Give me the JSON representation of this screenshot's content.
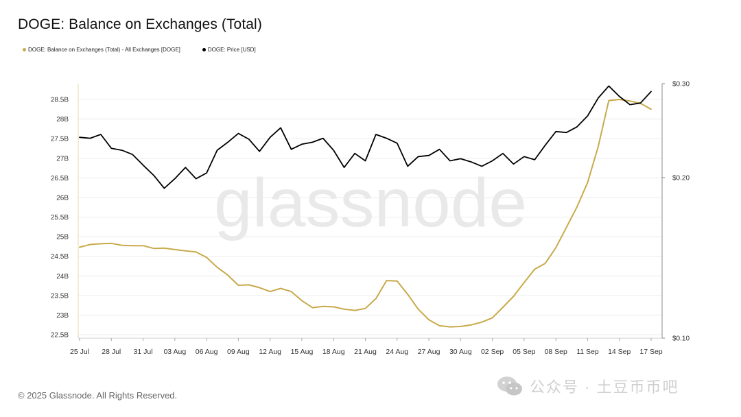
{
  "title": "DOGE: Balance on Exchanges (Total)",
  "legend": [
    {
      "label": "DOGE: Balance on Exchanges (Total) - All Exchanges [DOGE]",
      "color": "#c8a94a"
    },
    {
      "label": "DOGE: Price [USD]",
      "color": "#000000"
    }
  ],
  "footer": "© 2025 Glassnode. All Rights Reserved.",
  "watermark": "glassnode",
  "wechat_text": "公众号 · 土豆币币吧",
  "chart_data": {
    "type": "line",
    "x_tick_labels": [
      "25 Jul",
      "28 Jul",
      "31 Jul",
      "03 Aug",
      "06 Aug",
      "09 Aug",
      "12 Aug",
      "15 Aug",
      "18 Aug",
      "21 Aug",
      "24 Aug",
      "27 Aug",
      "30 Aug",
      "02 Sep",
      "05 Sep",
      "08 Sep",
      "11 Sep",
      "14 Sep",
      "17 Sep"
    ],
    "y_left_ticks": [
      "22.5B",
      "23B",
      "23.5B",
      "24B",
      "24.5B",
      "25B",
      "25.5B",
      "26B",
      "26.5B",
      "27B",
      "27.5B",
      "28B",
      "28.5B"
    ],
    "y_right_ticks": [
      "$0.10",
      "$0.20",
      "$0.30"
    ],
    "y_left_range": [
      22.5,
      28.5
    ],
    "y_right_range": [
      0.1,
      0.3
    ],
    "y_right_scale": "log",
    "grid": "horizontal",
    "series": [
      {
        "name": "DOGE: Balance on Exchanges (Total) - All Exchanges [DOGE]",
        "axis": "left",
        "color": "#c8a94a",
        "unit": "B",
        "values": [
          24.73,
          24.8,
          24.82,
          24.83,
          24.78,
          24.77,
          24.77,
          24.7,
          24.71,
          24.67,
          24.64,
          24.61,
          24.47,
          24.22,
          24.02,
          23.76,
          23.77,
          23.7,
          23.6,
          23.68,
          23.6,
          23.37,
          23.19,
          23.22,
          23.21,
          23.15,
          23.12,
          23.17,
          23.42,
          23.88,
          23.87,
          23.53,
          23.15,
          22.88,
          22.73,
          22.7,
          22.71,
          22.75,
          22.82,
          22.93,
          23.2,
          23.48,
          23.83,
          24.17,
          24.32,
          24.72,
          25.24,
          25.76,
          26.38,
          27.3,
          28.47,
          28.5,
          28.46,
          28.4,
          28.25
        ]
      },
      {
        "name": "DOGE: Price [USD]",
        "axis": "right",
        "color": "#000000",
        "values": [
          0.238,
          0.237,
          0.241,
          0.227,
          0.225,
          0.221,
          0.211,
          0.202,
          0.191,
          0.199,
          0.209,
          0.199,
          0.204,
          0.225,
          0.233,
          0.242,
          0.236,
          0.224,
          0.238,
          0.248,
          0.226,
          0.231,
          0.233,
          0.237,
          0.225,
          0.209,
          0.222,
          0.215,
          0.241,
          0.237,
          0.232,
          0.21,
          0.219,
          0.22,
          0.226,
          0.215,
          0.217,
          0.214,
          0.21,
          0.215,
          0.222,
          0.212,
          0.219,
          0.216,
          0.23,
          0.244,
          0.243,
          0.249,
          0.261,
          0.282,
          0.297,
          0.284,
          0.274,
          0.276,
          0.29
        ]
      }
    ]
  }
}
